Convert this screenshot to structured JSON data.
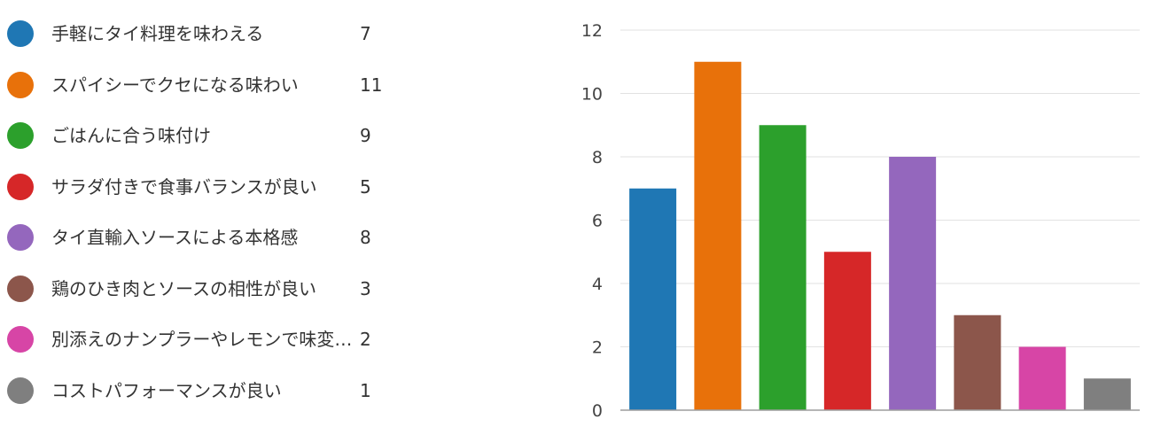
{
  "legend": {
    "items": [
      {
        "label": "手軽にタイ料理を味わえる",
        "count": "7",
        "color": "#1f77b4"
      },
      {
        "label": "スパイシーでクセになる味わい",
        "count": "11",
        "color": "#e8710a"
      },
      {
        "label": "ごはんに合う味付け",
        "count": "9",
        "color": "#2ca02c"
      },
      {
        "label": "サラダ付きで食事バランスが良い",
        "count": "5",
        "color": "#d62728"
      },
      {
        "label": "タイ直輸入ソースによる本格感",
        "count": "8",
        "color": "#9467bd"
      },
      {
        "label": "鶏のひき肉とソースの相性が良い",
        "count": "3",
        "color": "#8c564b"
      },
      {
        "label": "別添えのナンプラーやレモンで味変が…",
        "count": "2",
        "color": "#d745a6"
      },
      {
        "label": "コストパフォーマンスが良い",
        "count": "1",
        "color": "#7f7f7f"
      }
    ]
  },
  "chart_data": {
    "type": "bar",
    "categories": [
      "手軽にタイ料理を味わえる",
      "スパイシーでクセになる味わい",
      "ごはんに合う味付け",
      "サラダ付きで食事バランスが良い",
      "タイ直輸入ソースによる本格感",
      "鶏のひき肉とソースの相性が良い",
      "別添えのナンプラーやレモンで味変が…",
      "コストパフォーマンスが良い"
    ],
    "values": [
      7,
      11,
      9,
      5,
      8,
      3,
      2,
      1
    ],
    "colors": [
      "#1f77b4",
      "#e8710a",
      "#2ca02c",
      "#d62728",
      "#9467bd",
      "#8c564b",
      "#d745a6",
      "#7f7f7f"
    ],
    "ylim": [
      0,
      12
    ],
    "yticks": [
      0,
      2,
      4,
      6,
      8,
      10,
      12
    ],
    "grid": true,
    "legend": "left"
  }
}
